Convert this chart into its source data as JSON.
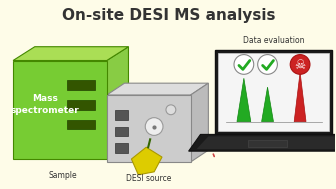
{
  "title": "On-site DESI MS analysis",
  "bg_color": "#FEFCE8",
  "title_color": "#333333",
  "title_fontsize": 11,
  "title_fontweight": "bold",
  "label_sample": "Sample",
  "label_desi": "DESI source",
  "label_mass": "Mass\nspectrometer",
  "label_data": "Data evaluation",
  "ms_box_color": "#66BB22",
  "ms_box_dark": "#448800",
  "ms_box_face": "#99DD44",
  "desi_box_color": "#BBBBBB",
  "desi_box_dark": "#888888",
  "laptop_screen_bg": "#FFFFFF",
  "laptop_body": "#222222",
  "peak1_color": "#22BB22",
  "peak2_color": "#22BB22",
  "peak3_color": "#DD2222",
  "check_color": "#22BB22",
  "skull_color": "#DD2222"
}
